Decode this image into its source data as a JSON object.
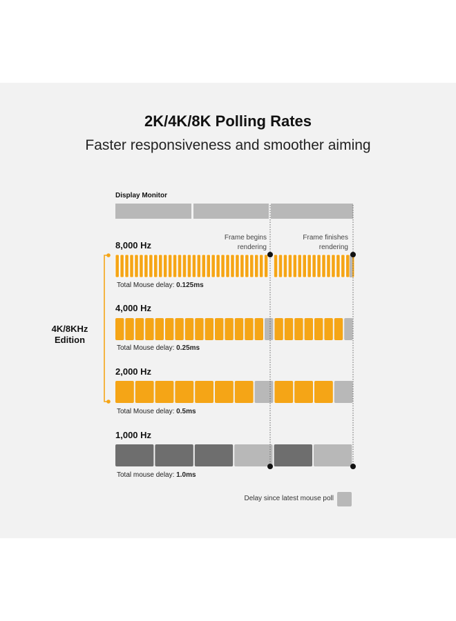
{
  "title": "2K/4K/8K Polling Rates",
  "subtitle": "Faster responsiveness and smoother aiming",
  "monitor_label": "Display Monitor",
  "annotations": {
    "frame_begins_line1": "Frame begins",
    "frame_begins_line2": "rendering",
    "frame_finishes_line1": "Frame finishes",
    "frame_finishes_line2": "rendering"
  },
  "edition": {
    "line1": "4K/8KHz",
    "line2": "Edition"
  },
  "rates": [
    {
      "label": "8,000 Hz",
      "delay_prefix": "Total Mouse delay: ",
      "delay_value": "0.125ms"
    },
    {
      "label": "4,000 Hz",
      "delay_prefix": "Total Mouse delay: ",
      "delay_value": "0.25ms"
    },
    {
      "label": "2,000 Hz",
      "delay_prefix": "Total Mouse delay: ",
      "delay_value": "0.5ms"
    },
    {
      "label": "1,000 Hz",
      "delay_prefix": "Total mouse delay: ",
      "delay_value": "1.0ms"
    }
  ],
  "legend": {
    "label": "Delay since latest mouse poll"
  },
  "colors": {
    "poll_8k_4k_2k": "#f5a516",
    "poll_1k": "#6e6e6e",
    "delay": "#b8b8b8",
    "monitor": "#b8b8b8",
    "bracket": "#f5a516"
  }
}
